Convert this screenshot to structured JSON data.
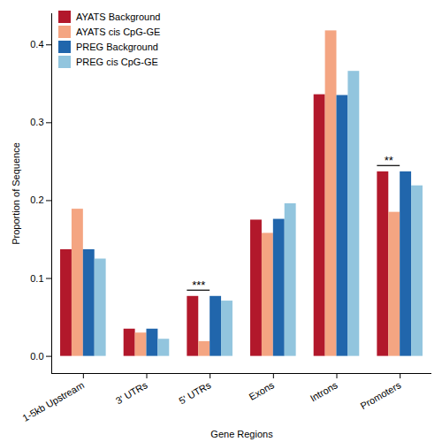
{
  "chart_data": {
    "type": "bar",
    "x_label": "Gene Regions",
    "y_label": "Proportion of Sequence",
    "categories": [
      "1-5kb Upstream",
      "3' UTRs",
      "5' UTRs",
      "Exons",
      "Introns",
      "Promoters"
    ],
    "series": [
      {
        "name": "AYATS Background",
        "color": "#b2182b",
        "values": [
          0.137,
          0.035,
          0.077,
          0.175,
          0.336,
          0.237
        ]
      },
      {
        "name": "AYATS cis CpG-GE",
        "color": "#f4a582",
        "values": [
          0.189,
          0.03,
          0.019,
          0.158,
          0.418,
          0.185
        ]
      },
      {
        "name": "PREG Background",
        "color": "#2166ac",
        "values": [
          0.137,
          0.035,
          0.077,
          0.176,
          0.335,
          0.237
        ]
      },
      {
        "name": "PREG cis CpG-GE",
        "color": "#92c5de",
        "values": [
          0.125,
          0.022,
          0.071,
          0.196,
          0.366,
          0.219
        ]
      }
    ],
    "ylim": [
      -0.022,
      0.44
    ],
    "yticks": [
      {
        "value": 0,
        "label": "0.0"
      },
      0.1,
      0.2,
      0.3,
      0.4
    ],
    "grid": false,
    "legend": "top-left",
    "annotations": [
      {
        "category": "5' UTRs",
        "series": [
          "AYATS Background",
          "AYATS cis CpG-GE"
        ],
        "text": "***",
        "y": 0.085
      },
      {
        "category": "Promoters",
        "series": [
          "AYATS Background",
          "AYATS cis CpG-GE"
        ],
        "text": "**",
        "y": 0.245
      }
    ]
  }
}
